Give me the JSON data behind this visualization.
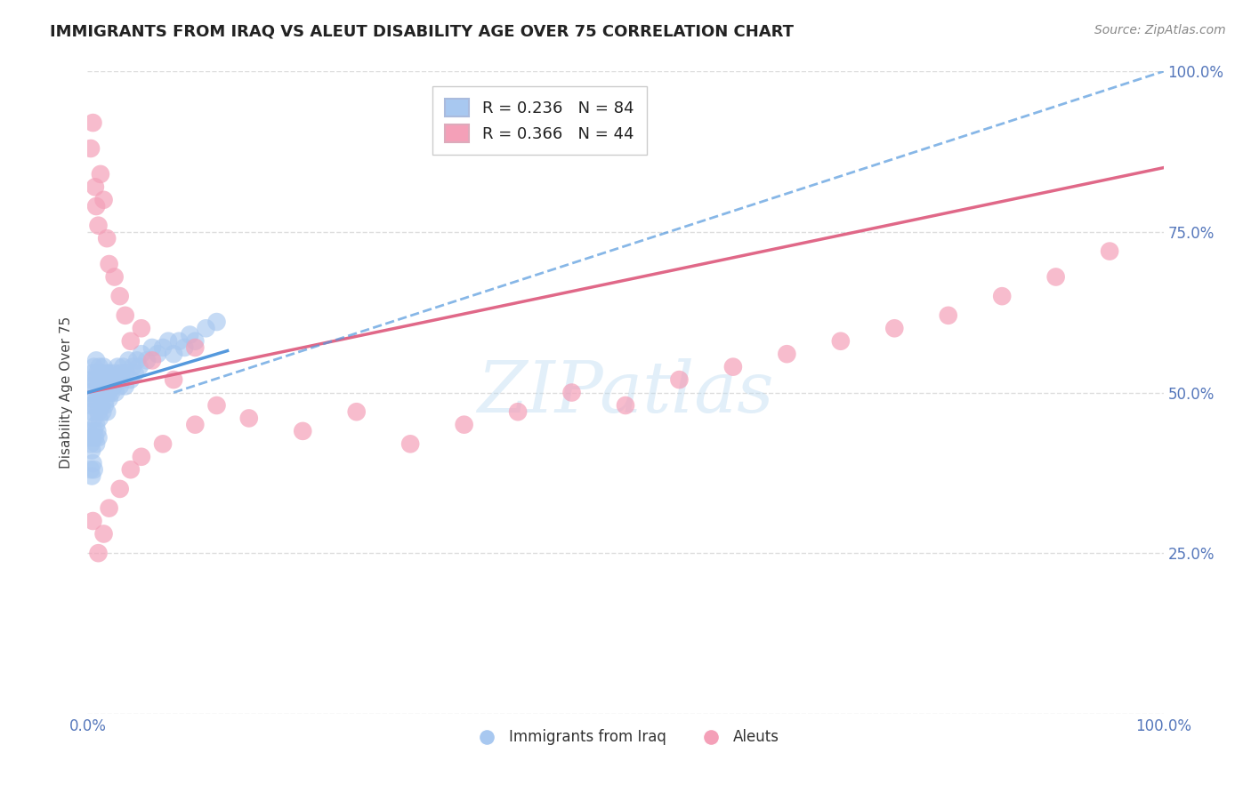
{
  "title": "IMMIGRANTS FROM IRAQ VS ALEUT DISABILITY AGE OVER 75 CORRELATION CHART",
  "source": "Source: ZipAtlas.com",
  "ylabel": "Disability Age Over 75",
  "xlim": [
    0.0,
    1.0
  ],
  "ylim": [
    0.0,
    1.0
  ],
  "xticks": [
    0.0,
    0.25,
    0.5,
    0.75,
    1.0
  ],
  "xticklabels": [
    "0.0%",
    "",
    "",
    "",
    "100.0%"
  ],
  "yticks": [
    0.0,
    0.25,
    0.5,
    0.75,
    1.0
  ],
  "yticklabels_right": [
    "",
    "25.0%",
    "50.0%",
    "75.0%",
    "100.0%"
  ],
  "legend_entry1": "R = 0.236   N = 84",
  "legend_entry2": "R = 0.366   N = 44",
  "iraq_color": "#a8c8f0",
  "aleut_color": "#f4a0b8",
  "iraq_line_color": "#5599dd",
  "aleut_line_color": "#e06888",
  "watermark": "ZIPatlas",
  "background_color": "#ffffff",
  "grid_color": "#dddddd",
  "iraq_scatter_x": [
    0.002,
    0.003,
    0.003,
    0.004,
    0.004,
    0.005,
    0.005,
    0.006,
    0.006,
    0.007,
    0.007,
    0.008,
    0.008,
    0.009,
    0.009,
    0.01,
    0.01,
    0.011,
    0.011,
    0.012,
    0.012,
    0.013,
    0.013,
    0.014,
    0.014,
    0.015,
    0.015,
    0.016,
    0.016,
    0.017,
    0.017,
    0.018,
    0.018,
    0.019,
    0.019,
    0.02,
    0.02,
    0.021,
    0.022,
    0.023,
    0.024,
    0.025,
    0.026,
    0.027,
    0.028,
    0.03,
    0.031,
    0.032,
    0.033,
    0.035,
    0.036,
    0.038,
    0.04,
    0.042,
    0.044,
    0.046,
    0.048,
    0.05,
    0.055,
    0.06,
    0.065,
    0.07,
    0.075,
    0.08,
    0.085,
    0.09,
    0.095,
    0.1,
    0.11,
    0.12,
    0.001,
    0.002,
    0.003,
    0.004,
    0.005,
    0.006,
    0.007,
    0.008,
    0.009,
    0.01,
    0.003,
    0.004,
    0.005,
    0.006
  ],
  "iraq_scatter_y": [
    0.5,
    0.52,
    0.48,
    0.51,
    0.47,
    0.53,
    0.49,
    0.54,
    0.46,
    0.52,
    0.48,
    0.55,
    0.45,
    0.53,
    0.49,
    0.51,
    0.47,
    0.54,
    0.46,
    0.52,
    0.5,
    0.48,
    0.53,
    0.51,
    0.47,
    0.54,
    0.5,
    0.48,
    0.52,
    0.51,
    0.49,
    0.53,
    0.47,
    0.5,
    0.52,
    0.51,
    0.49,
    0.53,
    0.5,
    0.52,
    0.51,
    0.53,
    0.5,
    0.52,
    0.54,
    0.51,
    0.53,
    0.52,
    0.54,
    0.51,
    0.53,
    0.55,
    0.52,
    0.54,
    0.53,
    0.55,
    0.54,
    0.56,
    0.55,
    0.57,
    0.56,
    0.57,
    0.58,
    0.56,
    0.58,
    0.57,
    0.59,
    0.58,
    0.6,
    0.61,
    0.44,
    0.43,
    0.42,
    0.41,
    0.43,
    0.44,
    0.43,
    0.42,
    0.44,
    0.43,
    0.38,
    0.37,
    0.39,
    0.38
  ],
  "aleut_scatter_x": [
    0.003,
    0.005,
    0.007,
    0.008,
    0.01,
    0.012,
    0.015,
    0.018,
    0.02,
    0.025,
    0.03,
    0.035,
    0.04,
    0.05,
    0.06,
    0.08,
    0.1,
    0.12,
    0.15,
    0.2,
    0.25,
    0.3,
    0.35,
    0.4,
    0.45,
    0.5,
    0.55,
    0.6,
    0.65,
    0.7,
    0.75,
    0.8,
    0.85,
    0.9,
    0.95,
    0.005,
    0.01,
    0.015,
    0.02,
    0.03,
    0.04,
    0.05,
    0.07,
    0.1
  ],
  "aleut_scatter_y": [
    0.88,
    0.92,
    0.82,
    0.79,
    0.76,
    0.84,
    0.8,
    0.74,
    0.7,
    0.68,
    0.65,
    0.62,
    0.58,
    0.6,
    0.55,
    0.52,
    0.57,
    0.48,
    0.46,
    0.44,
    0.47,
    0.42,
    0.45,
    0.47,
    0.5,
    0.48,
    0.52,
    0.54,
    0.56,
    0.58,
    0.6,
    0.62,
    0.65,
    0.68,
    0.72,
    0.3,
    0.25,
    0.28,
    0.32,
    0.35,
    0.38,
    0.4,
    0.42,
    0.45
  ],
  "iraq_line_x": [
    0.0,
    0.13
  ],
  "iraq_line_y": [
    0.5,
    0.565
  ],
  "aleut_line_x": [
    0.0,
    1.0
  ],
  "aleut_line_y": [
    0.5,
    0.85
  ],
  "dashed_line_x": [
    0.08,
    1.0
  ],
  "dashed_line_y": [
    0.5,
    1.0
  ],
  "title_fontsize": 13,
  "label_fontsize": 11,
  "tick_fontsize": 12,
  "legend_fontsize": 13
}
